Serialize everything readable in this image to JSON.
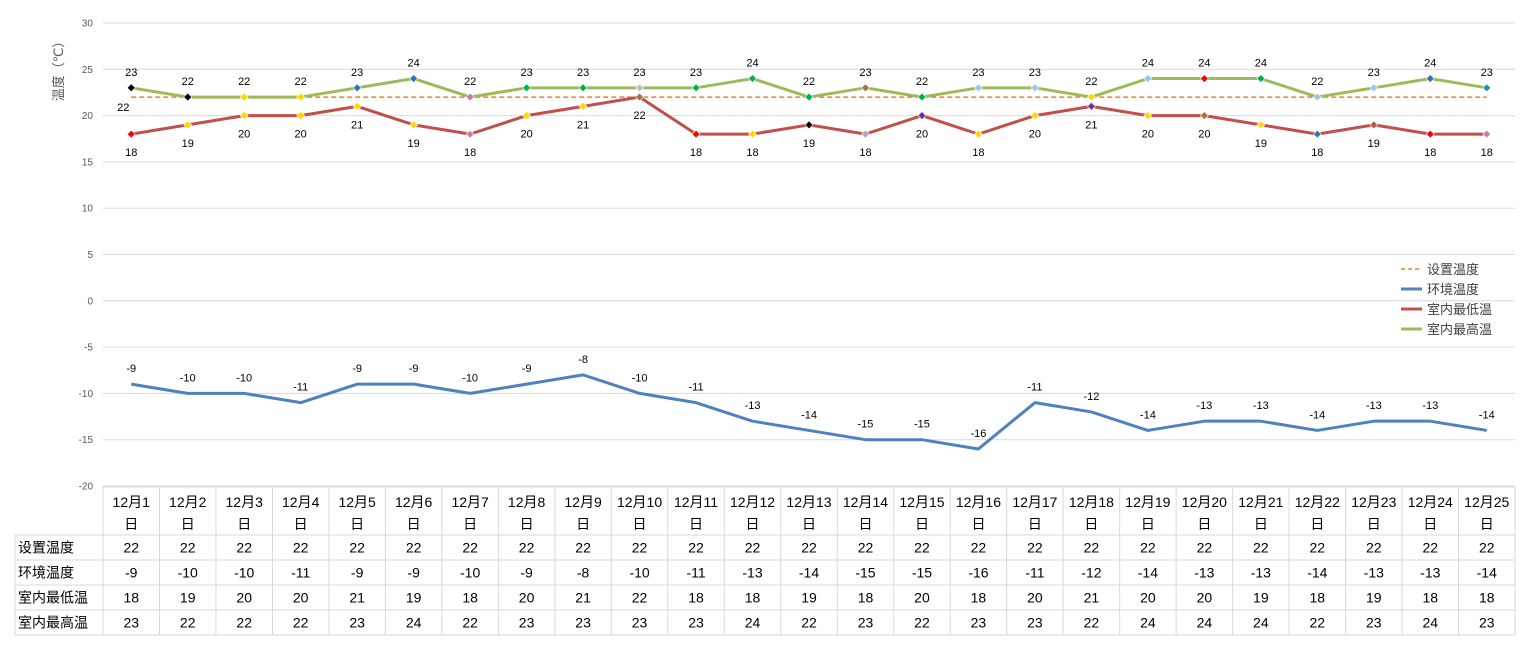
{
  "chart_data": {
    "type": "line",
    "ylabel": "温度（℃）",
    "ylim": [
      -20,
      30
    ],
    "yticks": [
      -20,
      -15,
      -10,
      -5,
      0,
      5,
      10,
      15,
      20,
      25,
      30
    ],
    "grid": true,
    "legend_position": "right",
    "categories": [
      "12月1日",
      "12月2日",
      "12月3日",
      "12月4日",
      "12月5日",
      "12月6日",
      "12月7日",
      "12月8日",
      "12月9日",
      "12月10日",
      "12月11日",
      "12月12日",
      "12月13日",
      "12月14日",
      "12月15日",
      "12月16日",
      "12月17日",
      "12月18日",
      "12月19日",
      "12月20日",
      "12月21日",
      "12月22日",
      "12月23日",
      "12月24日",
      "12月25日"
    ],
    "series": [
      {
        "name": "设置温度",
        "color": "#ED7D31",
        "style": "dashed",
        "values": [
          22,
          22,
          22,
          22,
          22,
          22,
          22,
          22,
          22,
          22,
          22,
          22,
          22,
          22,
          22,
          22,
          22,
          22,
          22,
          22,
          22,
          22,
          22,
          22,
          22
        ]
      },
      {
        "name": "环境温度",
        "color": "#4F81BD",
        "style": "solid",
        "values": [
          -9,
          -10,
          -10,
          -11,
          -9,
          -9,
          -10,
          -9,
          -8,
          -10,
          -11,
          -13,
          -14,
          -15,
          -15,
          -16,
          -11,
          -12,
          -14,
          -13,
          -13,
          -14,
          -13,
          -13,
          -14
        ]
      },
      {
        "name": "室内最低温",
        "color": "#C0504D",
        "style": "solid",
        "values": [
          18,
          19,
          20,
          20,
          21,
          19,
          18,
          20,
          21,
          22,
          18,
          18,
          19,
          18,
          20,
          18,
          20,
          21,
          20,
          20,
          19,
          18,
          19,
          18,
          18
        ]
      },
      {
        "name": "室内最高温",
        "color": "#9BBB59",
        "style": "solid",
        "values": [
          23,
          22,
          22,
          22,
          23,
          24,
          22,
          23,
          23,
          23,
          23,
          24,
          22,
          23,
          22,
          23,
          23,
          22,
          24,
          24,
          24,
          22,
          23,
          24,
          23
        ]
      }
    ],
    "marker_colors_max": [
      "#000000",
      "#000000",
      "#FFD700",
      "#FFD700",
      "#2E75B6",
      "#2E75B6",
      "#CC79A7",
      "#00B050",
      "#00B050",
      "#C0C0C0",
      "#00B050",
      "#00B050",
      "#00B050",
      "#9B7A3A",
      "#00B050",
      "#9DC3E6",
      "#9DC3E6",
      "#FFD700",
      "#9DC3E6",
      "#FF0000",
      "#00B050",
      "#9DC3E6",
      "#9DC3E6",
      "#2E75B6",
      "#1F8FA6"
    ],
    "marker_colors_min": [
      "#FF0000",
      "#FFD700",
      "#FFD700",
      "#FFD700",
      "#FFD700",
      "#FFD700",
      "#CC79A7",
      "#FFD700",
      "#FFD700",
      "#9B7A3A",
      "#FF0000",
      "#FFD700",
      "#000000",
      "#A6A6C6",
      "#7030A0",
      "#FFD700",
      "#FFD700",
      "#7030A0",
      "#FFD700",
      "#9B7A3A",
      "#FFD700",
      "#2E75B6",
      "#C0504D",
      "#FF0000",
      "#CC79A7"
    ]
  }
}
